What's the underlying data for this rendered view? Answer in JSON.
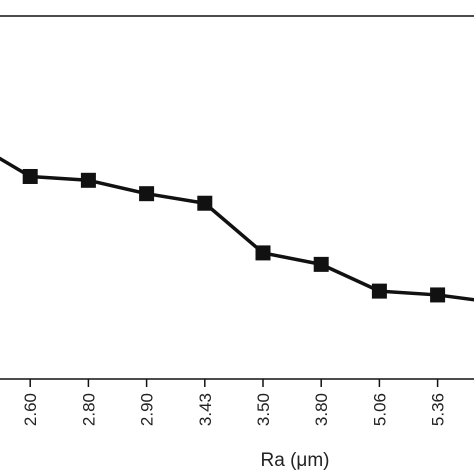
{
  "chart_data": {
    "type": "line",
    "categories": [
      "",
      "2.60",
      "2.80",
      "2.90",
      "3.43",
      "3.50",
      "3.80",
      "5.06",
      "5.36",
      ""
    ],
    "series": [
      {
        "values": [
          8.2,
          7.3,
          7.2,
          6.85,
          6.6,
          5.3,
          5.0,
          4.3,
          4.2,
          4.0
        ]
      }
    ],
    "xlabel": "Ra (μm)",
    "ylabel": "",
    "ylim": [
      2.0,
      11.5
    ],
    "grid": false,
    "marker": "square",
    "line_color": "#111111"
  }
}
